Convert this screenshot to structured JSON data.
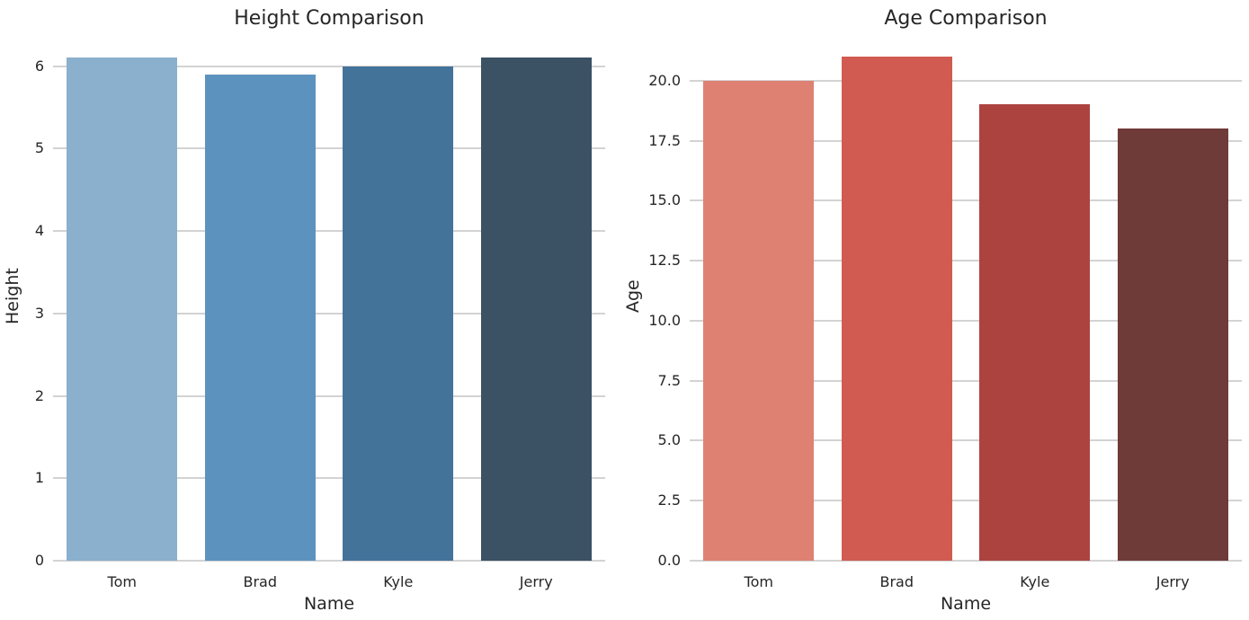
{
  "figure": {
    "background_color": "#ffffff",
    "text_color": "#262626",
    "grid_color": "#d3d3d3"
  },
  "chart_data": [
    {
      "type": "bar",
      "title": "Height Comparison",
      "xlabel": "Name",
      "ylabel": "Height",
      "categories": [
        "Tom",
        "Brad",
        "Kyle",
        "Jerry"
      ],
      "values": [
        6.1,
        5.9,
        6.0,
        6.1
      ],
      "bar_colors": [
        "#8AB0CD",
        "#5C93BE",
        "#44739A",
        "#3B5164"
      ],
      "ylim": [
        0,
        6.42
      ],
      "ytick_values": [
        0,
        1,
        2,
        3,
        4,
        5,
        6
      ],
      "ytick_labels": [
        "0",
        "1",
        "2",
        "3",
        "4",
        "5",
        "6"
      ],
      "grid": true,
      "legend_position": "none"
    },
    {
      "type": "bar",
      "title": "Age Comparison",
      "xlabel": "Name",
      "ylabel": "Age",
      "categories": [
        "Tom",
        "Brad",
        "Kyle",
        "Jerry"
      ],
      "values": [
        20,
        21,
        19,
        18
      ],
      "bar_colors": [
        "#DF8172",
        "#D15B50",
        "#AD433F",
        "#6F3B39"
      ],
      "ylim": [
        0,
        22.05
      ],
      "ytick_values": [
        0,
        2.5,
        5,
        7.5,
        10,
        12.5,
        15,
        17.5,
        20
      ],
      "ytick_labels": [
        "0.0",
        "2.5",
        "5.0",
        "7.5",
        "10.0",
        "12.5",
        "15.0",
        "17.5",
        "20.0"
      ],
      "grid": true,
      "legend_position": "none"
    }
  ]
}
